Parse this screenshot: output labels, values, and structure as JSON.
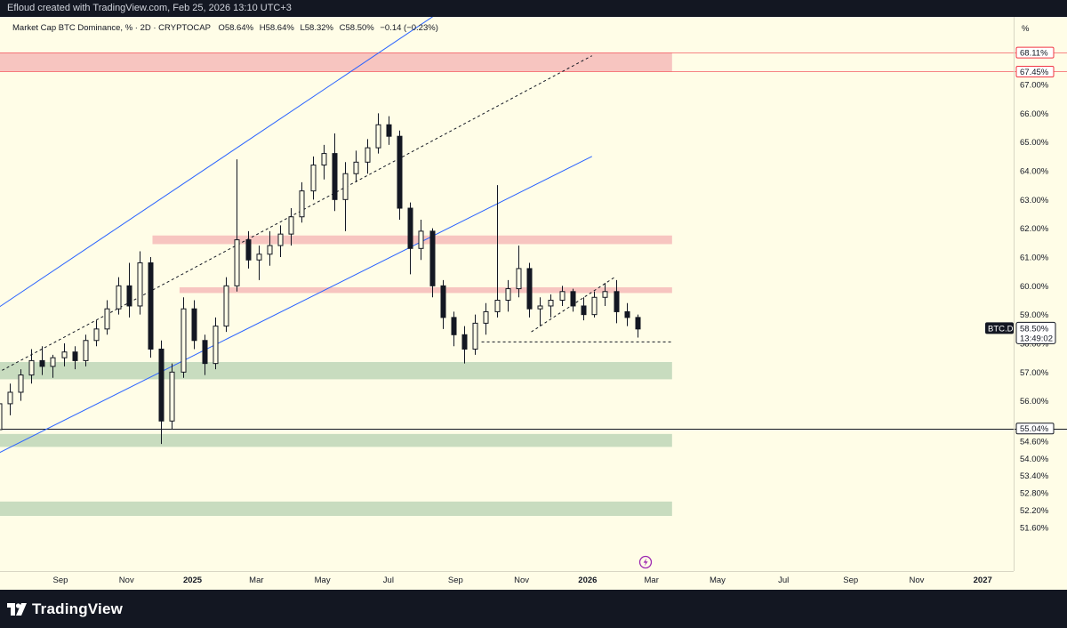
{
  "header": {
    "credit": "Efloud created with TradingView.com, Feb 25, 2026 13:10 UTC+3"
  },
  "footer": {
    "brand": "TradingView"
  },
  "colors": {
    "background": "#fffde7",
    "bull": "#131722",
    "bear": "#131722",
    "resistance_zone": "#f7c5c0",
    "support_zone": "#c8dcbf",
    "channel": "#2962ff",
    "resistance_tag": "#f23645",
    "price_tag": "#131722"
  },
  "chart_data": {
    "type": "candlestick",
    "legend": {
      "symbol": "Market Cap BTC Dominance, % · 2D · CRYPTOCAP",
      "o_label": "O",
      "o_value": "58.64%",
      "h_label": "H",
      "h_value": "58.64%",
      "l_label": "L",
      "l_value": "58.32%",
      "c_label": "C",
      "c_value": "58.50%",
      "change": "−0.14 (−0.23%)"
    },
    "y_unit_label": "%",
    "y_axis_ticks": [
      "67.00%",
      "66.00%",
      "65.00%",
      "64.00%",
      "63.00%",
      "62.00%",
      "61.00%",
      "60.00%",
      "59.00%",
      "58.00%",
      "57.00%",
      "56.00%",
      "55.00%",
      "54.60%",
      "54.00%",
      "53.40%",
      "52.80%",
      "52.20%",
      "51.60%"
    ],
    "x_axis_ticks": [
      "Sep",
      "Nov",
      "2025",
      "Mar",
      "May",
      "Jul",
      "Sep",
      "Nov",
      "2026",
      "Mar",
      "May",
      "Jul",
      "Sep",
      "Nov",
      "2027"
    ],
    "x_axis_bold": [
      "2025",
      "2026",
      "2027"
    ],
    "price_tag": {
      "symbol": "BTC.D",
      "value": "58.50%",
      "countdown": "13:49:02"
    },
    "level_tags": [
      {
        "value": "68.11%",
        "level": 68.11,
        "style": "resistance"
      },
      {
        "value": "67.45%",
        "level": 67.45,
        "style": "resistance"
      },
      {
        "value": "55.04%",
        "level": 55.04,
        "style": "support"
      }
    ],
    "zones": [
      {
        "kind": "resistance",
        "from_date": "2024-06-26",
        "to_date": "2026-03-20",
        "low": 67.45,
        "high": 68.11
      },
      {
        "kind": "resistance",
        "from_date": "2024-11-25",
        "to_date": "2026-03-20",
        "low": 61.45,
        "high": 61.75
      },
      {
        "kind": "resistance",
        "from_date": "2024-12-20",
        "to_date": "2026-03-20",
        "low": 59.75,
        "high": 59.95
      },
      {
        "kind": "support",
        "from_date": "2024-06-26",
        "to_date": "2026-03-20",
        "low": 56.75,
        "high": 57.35
      },
      {
        "kind": "support",
        "from_date": "2024-06-26",
        "to_date": "2026-03-20",
        "low": 54.4,
        "high": 54.85
      },
      {
        "kind": "support",
        "from_date": "2024-06-26",
        "to_date": "2026-03-20",
        "low": 52.0,
        "high": 52.5
      }
    ],
    "horizontal_lines": [
      {
        "level": 55.04,
        "from_date": "2024-06-26",
        "to_date": "2027-03-15"
      }
    ],
    "trend_lines": [
      {
        "kind": "channel-upper",
        "from": [
          "2024-06-26",
          59.0
        ],
        "to": [
          "2025-10-15",
          71.0
        ]
      },
      {
        "kind": "channel-mid",
        "from": [
          "2024-06-26",
          56.8
        ],
        "to": [
          "2026-01-05",
          68.0
        ]
      },
      {
        "kind": "channel-lower",
        "from": [
          "2024-06-26",
          54.0
        ],
        "to": [
          "2026-01-05",
          64.5
        ]
      },
      {
        "kind": "local-support",
        "from": [
          "2025-11-10",
          58.4
        ],
        "to": [
          "2026-01-26",
          60.3
        ]
      },
      {
        "kind": "target-dash",
        "from": [
          "2025-09-25",
          58.05
        ],
        "to": [
          "2026-03-20",
          58.05
        ]
      }
    ],
    "candles": [
      {
        "date": "2024-06-26",
        "o": 54.5,
        "h": 55.2,
        "l": 54.3,
        "c": 55.0
      },
      {
        "date": "2024-07-06",
        "o": 55.0,
        "h": 56.2,
        "l": 54.9,
        "c": 55.9
      },
      {
        "date": "2024-07-16",
        "o": 55.9,
        "h": 56.6,
        "l": 55.5,
        "c": 56.3
      },
      {
        "date": "2024-07-26",
        "o": 56.3,
        "h": 57.1,
        "l": 56.0,
        "c": 56.9
      },
      {
        "date": "2024-08-05",
        "o": 56.9,
        "h": 57.8,
        "l": 56.6,
        "c": 57.4
      },
      {
        "date": "2024-08-15",
        "o": 57.4,
        "h": 57.9,
        "l": 56.9,
        "c": 57.2
      },
      {
        "date": "2024-08-25",
        "o": 57.2,
        "h": 57.6,
        "l": 56.8,
        "c": 57.5
      },
      {
        "date": "2024-09-04",
        "o": 57.5,
        "h": 58.0,
        "l": 57.2,
        "c": 57.7
      },
      {
        "date": "2024-09-14",
        "o": 57.7,
        "h": 57.9,
        "l": 57.1,
        "c": 57.4
      },
      {
        "date": "2024-09-24",
        "o": 57.4,
        "h": 58.3,
        "l": 57.2,
        "c": 58.1
      },
      {
        "date": "2024-10-04",
        "o": 58.1,
        "h": 58.8,
        "l": 57.9,
        "c": 58.5
      },
      {
        "date": "2024-10-14",
        "o": 58.5,
        "h": 59.5,
        "l": 58.3,
        "c": 59.2
      },
      {
        "date": "2024-10-24",
        "o": 59.2,
        "h": 60.3,
        "l": 59.0,
        "c": 60.0
      },
      {
        "date": "2024-11-03",
        "o": 60.0,
        "h": 60.8,
        "l": 58.9,
        "c": 59.3
      },
      {
        "date": "2024-11-13",
        "o": 59.3,
        "h": 61.2,
        "l": 59.0,
        "c": 60.8
      },
      {
        "date": "2024-11-23",
        "o": 60.8,
        "h": 61.0,
        "l": 57.5,
        "c": 57.8
      },
      {
        "date": "2024-12-03",
        "o": 57.8,
        "h": 58.1,
        "l": 54.5,
        "c": 55.3
      },
      {
        "date": "2024-12-13",
        "o": 55.3,
        "h": 57.3,
        "l": 55.0,
        "c": 57.0
      },
      {
        "date": "2024-12-23",
        "o": 57.0,
        "h": 59.6,
        "l": 56.8,
        "c": 59.2
      },
      {
        "date": "2025-01-02",
        "o": 59.2,
        "h": 59.5,
        "l": 57.8,
        "c": 58.1
      },
      {
        "date": "2025-01-12",
        "o": 58.1,
        "h": 58.3,
        "l": 56.9,
        "c": 57.3
      },
      {
        "date": "2025-01-22",
        "o": 57.3,
        "h": 58.9,
        "l": 57.1,
        "c": 58.6
      },
      {
        "date": "2025-02-01",
        "o": 58.6,
        "h": 60.3,
        "l": 58.4,
        "c": 60.0
      },
      {
        "date": "2025-02-11",
        "o": 60.0,
        "h": 64.4,
        "l": 59.8,
        "c": 61.6
      },
      {
        "date": "2025-02-21",
        "o": 61.6,
        "h": 61.9,
        "l": 60.6,
        "c": 60.9
      },
      {
        "date": "2025-03-03",
        "o": 60.9,
        "h": 61.4,
        "l": 60.2,
        "c": 61.1
      },
      {
        "date": "2025-03-13",
        "o": 61.1,
        "h": 61.9,
        "l": 60.7,
        "c": 61.4
      },
      {
        "date": "2025-03-23",
        "o": 61.4,
        "h": 62.1,
        "l": 61.0,
        "c": 61.8
      },
      {
        "date": "2025-04-02",
        "o": 61.8,
        "h": 62.7,
        "l": 61.4,
        "c": 62.4
      },
      {
        "date": "2025-04-12",
        "o": 62.4,
        "h": 63.6,
        "l": 62.2,
        "c": 63.3
      },
      {
        "date": "2025-04-22",
        "o": 63.3,
        "h": 64.5,
        "l": 63.0,
        "c": 64.2
      },
      {
        "date": "2025-05-02",
        "o": 64.2,
        "h": 64.9,
        "l": 63.7,
        "c": 64.6
      },
      {
        "date": "2025-05-12",
        "o": 64.6,
        "h": 65.3,
        "l": 62.6,
        "c": 63.0
      },
      {
        "date": "2025-05-22",
        "o": 63.0,
        "h": 64.3,
        "l": 61.9,
        "c": 63.9
      },
      {
        "date": "2025-06-01",
        "o": 63.9,
        "h": 64.7,
        "l": 63.6,
        "c": 64.3
      },
      {
        "date": "2025-06-11",
        "o": 64.3,
        "h": 65.1,
        "l": 63.9,
        "c": 64.8
      },
      {
        "date": "2025-06-21",
        "o": 64.8,
        "h": 66.0,
        "l": 64.6,
        "c": 65.6
      },
      {
        "date": "2025-07-01",
        "o": 65.6,
        "h": 65.9,
        "l": 64.9,
        "c": 65.2
      },
      {
        "date": "2025-07-11",
        "o": 65.2,
        "h": 65.4,
        "l": 62.3,
        "c": 62.7
      },
      {
        "date": "2025-07-21",
        "o": 62.7,
        "h": 62.9,
        "l": 60.4,
        "c": 61.3
      },
      {
        "date": "2025-07-31",
        "o": 61.3,
        "h": 62.3,
        "l": 60.9,
        "c": 61.9
      },
      {
        "date": "2025-08-10",
        "o": 61.9,
        "h": 62.0,
        "l": 59.6,
        "c": 60.0
      },
      {
        "date": "2025-08-20",
        "o": 60.0,
        "h": 60.2,
        "l": 58.5,
        "c": 58.9
      },
      {
        "date": "2025-08-30",
        "o": 58.9,
        "h": 59.1,
        "l": 57.9,
        "c": 58.3
      },
      {
        "date": "2025-09-09",
        "o": 58.3,
        "h": 58.6,
        "l": 57.3,
        "c": 57.8
      },
      {
        "date": "2025-09-19",
        "o": 57.8,
        "h": 59.0,
        "l": 57.6,
        "c": 58.7
      },
      {
        "date": "2025-09-29",
        "o": 58.7,
        "h": 59.4,
        "l": 58.3,
        "c": 59.1
      },
      {
        "date": "2025-10-09",
        "o": 59.1,
        "h": 63.5,
        "l": 58.9,
        "c": 59.5
      },
      {
        "date": "2025-10-19",
        "o": 59.5,
        "h": 60.2,
        "l": 59.1,
        "c": 59.9
      },
      {
        "date": "2025-10-29",
        "o": 59.9,
        "h": 61.4,
        "l": 59.6,
        "c": 60.6
      },
      {
        "date": "2025-11-08",
        "o": 60.6,
        "h": 60.8,
        "l": 58.9,
        "c": 59.2
      },
      {
        "date": "2025-11-18",
        "o": 59.2,
        "h": 59.6,
        "l": 58.6,
        "c": 59.3
      },
      {
        "date": "2025-11-28",
        "o": 59.3,
        "h": 59.7,
        "l": 58.9,
        "c": 59.5
      },
      {
        "date": "2025-12-08",
        "o": 59.5,
        "h": 60.0,
        "l": 59.3,
        "c": 59.8
      },
      {
        "date": "2025-12-18",
        "o": 59.8,
        "h": 59.9,
        "l": 59.1,
        "c": 59.3
      },
      {
        "date": "2025-12-28",
        "o": 59.3,
        "h": 59.6,
        "l": 58.8,
        "c": 59.0
      },
      {
        "date": "2026-01-07",
        "o": 59.0,
        "h": 59.8,
        "l": 58.9,
        "c": 59.6
      },
      {
        "date": "2026-01-17",
        "o": 59.6,
        "h": 60.1,
        "l": 59.3,
        "c": 59.8
      },
      {
        "date": "2026-01-27",
        "o": 59.8,
        "h": 60.2,
        "l": 58.7,
        "c": 59.1
      },
      {
        "date": "2026-02-06",
        "o": 59.1,
        "h": 59.4,
        "l": 58.6,
        "c": 58.9
      },
      {
        "date": "2026-02-16",
        "o": 58.9,
        "h": 59.0,
        "l": 58.2,
        "c": 58.5
      }
    ]
  }
}
